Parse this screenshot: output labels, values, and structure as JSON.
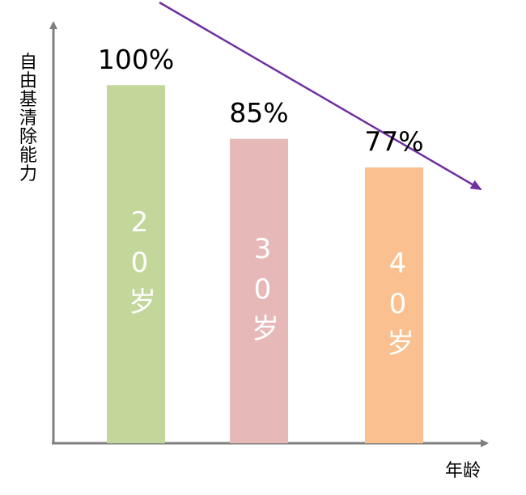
{
  "chart_data": {
    "type": "bar",
    "y_label": "自由基清除能力",
    "x_label": "年龄",
    "categories": [
      "20岁",
      "30岁",
      "40岁"
    ],
    "values": [
      100,
      85,
      77
    ],
    "value_labels": [
      "100%",
      "85%",
      "77%"
    ],
    "colors": [
      "#c4d79b",
      "#e6b9b8",
      "#fac090"
    ],
    "ylim": [
      0,
      117
    ]
  }
}
